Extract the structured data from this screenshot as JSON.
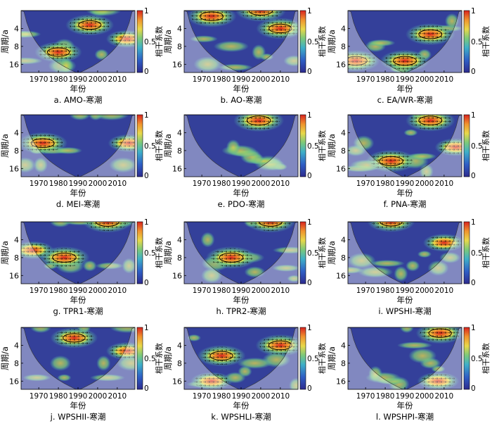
{
  "figure": {
    "ylabel": "周期/a",
    "xlabel": "年份",
    "colorbar_label": "相干系数",
    "colorbar_ticks": [
      "1",
      "0.5",
      "0"
    ],
    "yticks": [
      "4",
      "8",
      "16"
    ],
    "xticks": [
      "1970",
      "1980",
      "1990",
      "2000",
      "2010"
    ]
  },
  "chart_data": [
    {
      "type": "heatmap",
      "title": "a. AMO-寒潮",
      "xlabel": "年份",
      "ylabel": "周期/a",
      "colorbar_label": "相干系数",
      "xlim": [
        1961,
        2019
      ],
      "ylim": [
        2,
        22
      ],
      "zlim": [
        0,
        1
      ],
      "hotspots": [
        {
          "x": 1996,
          "period": 3.5,
          "strength": 0.9
        },
        {
          "x": 1980,
          "period": 10,
          "strength": 0.85
        },
        {
          "x": 2015,
          "period": 6,
          "strength": 0.6
        }
      ]
    },
    {
      "type": "heatmap",
      "title": "b. AO-寒潮",
      "xlabel": "年份",
      "ylabel": "周期/a",
      "colorbar_label": "相干系数",
      "xlim": [
        1961,
        2019
      ],
      "ylim": [
        2,
        22
      ],
      "zlim": [
        0,
        1
      ],
      "hotspots": [
        {
          "x": 1975,
          "period": 2.5,
          "strength": 0.95
        },
        {
          "x": 2000,
          "period": 2,
          "strength": 1
        },
        {
          "x": 2010,
          "period": 4,
          "strength": 0.9
        }
      ]
    },
    {
      "type": "heatmap",
      "title": "c. EA/WR-寒潮",
      "xlabel": "年份",
      "ylabel": "周期/a",
      "colorbar_label": "相干系数",
      "xlim": [
        1961,
        2019
      ],
      "ylim": [
        2,
        22
      ],
      "zlim": [
        0,
        1
      ],
      "hotspots": [
        {
          "x": 2003,
          "period": 5,
          "strength": 0.95
        },
        {
          "x": 1990,
          "period": 14,
          "strength": 0.95
        },
        {
          "x": 1965,
          "period": 14,
          "strength": 0.9
        }
      ]
    },
    {
      "type": "heatmap",
      "title": "d. MEI-寒潮",
      "xlabel": "年份",
      "ylabel": "周期/a",
      "colorbar_label": "相干系数",
      "xlim": [
        1961,
        2019
      ],
      "ylim": [
        2,
        22
      ],
      "zlim": [
        0,
        1
      ],
      "hotspots": [
        {
          "x": 1972,
          "period": 6,
          "strength": 0.95
        },
        {
          "x": 2016,
          "period": 6,
          "strength": 0.6
        }
      ]
    },
    {
      "type": "heatmap",
      "title": "e. PDO-寒潮",
      "xlabel": "年份",
      "ylabel": "周期/a",
      "colorbar_label": "相干系数",
      "xlim": [
        1961,
        2019
      ],
      "ylim": [
        2,
        22
      ],
      "zlim": [
        0,
        1
      ],
      "hotspots": [
        {
          "x": 1999,
          "period": 2.5,
          "strength": 1
        }
      ]
    },
    {
      "type": "heatmap",
      "title": "f. PNA-寒潮",
      "xlabel": "年份",
      "ylabel": "周期/a",
      "colorbar_label": "相干系数",
      "xlim": [
        1961,
        2019
      ],
      "ylim": [
        2,
        22
      ],
      "zlim": [
        0,
        1
      ],
      "hotspots": [
        {
          "x": 1983,
          "period": 12,
          "strength": 1
        },
        {
          "x": 2003,
          "period": 2.5,
          "strength": 0.95
        },
        {
          "x": 2016,
          "period": 7,
          "strength": 0.6
        }
      ]
    },
    {
      "type": "heatmap",
      "title": "g. TPR1-寒潮",
      "xlabel": "年份",
      "ylabel": "周期/a",
      "colorbar_label": "相干系数",
      "xlim": [
        1961,
        2019
      ],
      "ylim": [
        2,
        22
      ],
      "zlim": [
        0,
        1
      ],
      "hotspots": [
        {
          "x": 1983,
          "period": 8,
          "strength": 1
        },
        {
          "x": 2005,
          "period": 2,
          "strength": 0.95
        },
        {
          "x": 1967,
          "period": 6,
          "strength": 0.6
        }
      ]
    },
    {
      "type": "heatmap",
      "title": "h. TPR2-寒潮",
      "xlabel": "年份",
      "ylabel": "周期/a",
      "colorbar_label": "相干系数",
      "xlim": [
        1961,
        2019
      ],
      "ylim": [
        2,
        22
      ],
      "zlim": [
        0,
        1
      ],
      "hotspots": [
        {
          "x": 1985,
          "period": 8,
          "strength": 1
        },
        {
          "x": 2005,
          "period": 2,
          "strength": 0.95
        }
      ]
    },
    {
      "type": "heatmap",
      "title": "i. WPSHI-寒潮",
      "xlabel": "年份",
      "ylabel": "周期/a",
      "colorbar_label": "相干系数",
      "xlim": [
        1961,
        2019
      ],
      "ylim": [
        2,
        22
      ],
      "zlim": [
        0,
        1
      ],
      "hotspots": [
        {
          "x": 1983,
          "period": 2,
          "strength": 0.85
        },
        {
          "x": 2010,
          "period": 4.5,
          "strength": 0.6
        }
      ]
    },
    {
      "type": "heatmap",
      "title": "j. WPSHII-寒潮",
      "xlabel": "年份",
      "ylabel": "周期/a",
      "colorbar_label": "相干系数",
      "xlim": [
        1961,
        2019
      ],
      "ylim": [
        2,
        22
      ],
      "zlim": [
        0,
        1
      ],
      "hotspots": [
        {
          "x": 1988,
          "period": 3,
          "strength": 0.85
        },
        {
          "x": 2015,
          "period": 5,
          "strength": 0.6
        }
      ]
    },
    {
      "type": "heatmap",
      "title": "k. WPSHLI-寒潮",
      "xlabel": "年份",
      "ylabel": "周期/a",
      "colorbar_label": "相干系数",
      "xlim": [
        1961,
        2019
      ],
      "ylim": [
        2,
        22
      ],
      "zlim": [
        0,
        1
      ],
      "hotspots": [
        {
          "x": 1980,
          "period": 6,
          "strength": 0.9
        },
        {
          "x": 2010,
          "period": 4,
          "strength": 0.95
        },
        {
          "x": 1975,
          "period": 16,
          "strength": 0.6
        }
      ]
    },
    {
      "type": "heatmap",
      "title": "l. WPSHPI-寒潮",
      "xlabel": "年份",
      "ylabel": "周期/a",
      "colorbar_label": "相干系数",
      "xlim": [
        1961,
        2019
      ],
      "ylim": [
        2,
        22
      ],
      "zlim": [
        0,
        1
      ],
      "hotspots": [
        {
          "x": 2008,
          "period": 2.5,
          "strength": 0.9
        },
        {
          "x": 2007,
          "period": 16,
          "strength": 0.6
        }
      ]
    }
  ],
  "colors": {
    "low": "#2d2a8e",
    "mid": "#4fb8b0",
    "high": "#e3322b",
    "coi_shade": "#ffffff",
    "axis": "#000000"
  }
}
